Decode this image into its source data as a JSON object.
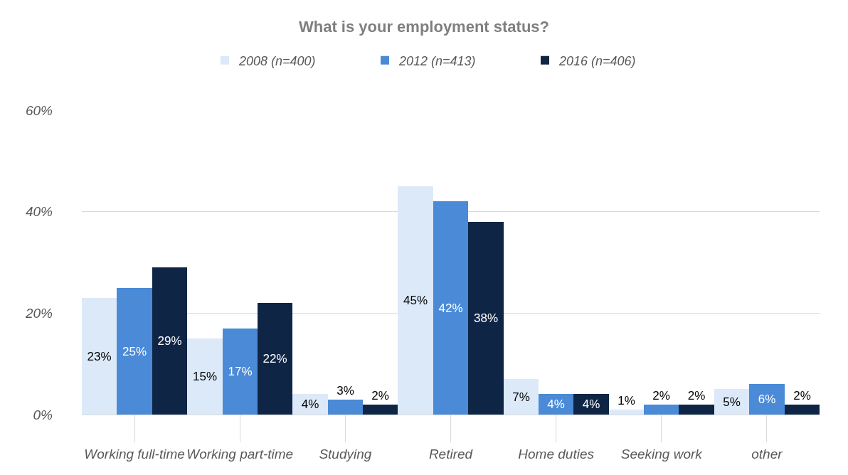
{
  "chart_data": {
    "type": "bar",
    "title": "What is your employment status?",
    "categories": [
      "Working full-time",
      "Working part-time",
      "Studying",
      "Retired",
      "Home duties",
      "Seeking work",
      "other"
    ],
    "series": [
      {
        "name": "2008 (n=400)",
        "color": "#dce9f8",
        "values": [
          23,
          15,
          4,
          45,
          7,
          1,
          5
        ],
        "value_labels": [
          "23%",
          "15%",
          "4%",
          "45%",
          "7%",
          "1%",
          "5%"
        ]
      },
      {
        "name": "2012 (n=413)",
        "color": "#4a8ad6",
        "values": [
          25,
          17,
          3,
          42,
          4,
          2,
          6
        ],
        "value_labels": [
          "25%",
          "17%",
          "3%",
          "42%",
          "4%",
          "2%",
          "6%"
        ]
      },
      {
        "name": "2016 (n=406)",
        "color": "#0f2545",
        "values": [
          29,
          22,
          2,
          38,
          4,
          2,
          2
        ],
        "value_labels": [
          "29%",
          "22%",
          "2%",
          "38%",
          "4%",
          "2%",
          "2%"
        ]
      }
    ],
    "ylim": [
      0,
      60
    ],
    "yticks": [
      {
        "value": 0,
        "label": "0%"
      },
      {
        "value": 20,
        "label": "20%"
      },
      {
        "value": 40,
        "label": "40%"
      },
      {
        "value": 60,
        "label": "60%"
      }
    ],
    "grid": "y",
    "legend": "top"
  }
}
